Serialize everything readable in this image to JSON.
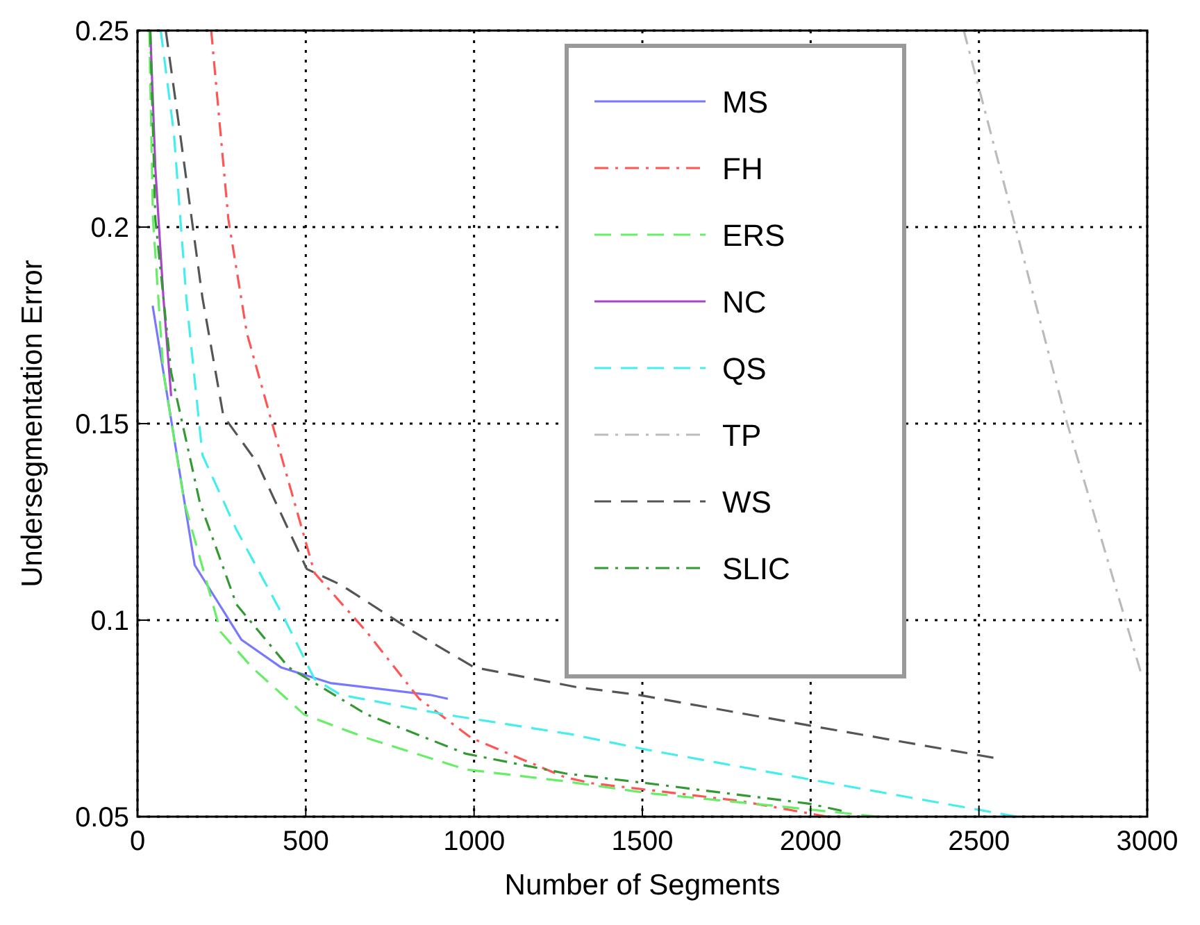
{
  "chart_data": {
    "type": "line",
    "xlabel": "Number of Segments",
    "ylabel": "Undersegmentation Error",
    "xlim": [
      0,
      3000
    ],
    "ylim": [
      0.05,
      0.25
    ],
    "xticks": [
      0,
      500,
      1000,
      1500,
      2000,
      2500,
      3000
    ],
    "yticks": [
      {
        "value": 0.05,
        "label": "0.05"
      },
      {
        "value": 0.1,
        "label": "0.1"
      },
      {
        "value": 0.15,
        "label": "0.15"
      },
      {
        "value": 0.2,
        "label": "0.2"
      },
      {
        "value": 0.25,
        "label": "0.25"
      }
    ],
    "grid": true,
    "legend": "top right",
    "marker": "none",
    "series": [
      {
        "name": "MS",
        "color": "#7777ff",
        "line_style": "solid",
        "x": [
          45,
          170,
          309,
          426,
          573,
          868,
          922
        ],
        "values": [
          0.18,
          0.114,
          0.095,
          0.088,
          0.084,
          0.081,
          0.08
        ]
      },
      {
        "name": "FH",
        "color": "#ff5555",
        "line_style": "dashdot",
        "x": [
          219,
          270,
          325,
          433,
          526,
          681,
          837,
          992,
          1271,
          1350,
          1597,
          1789,
          2050
        ],
        "values": [
          0.25,
          0.202,
          0.173,
          0.14,
          0.112,
          0.097,
          0.08,
          0.07,
          0.06,
          0.0585,
          0.056,
          0.054,
          0.05
        ]
      },
      {
        "name": "ERS",
        "color": "#66ee66",
        "line_style": "dashed",
        "x": [
          35,
          46,
          77,
          139,
          247,
          340,
          495,
          681,
          976,
          1271,
          1515,
          1900,
          2200
        ],
        "values": [
          0.25,
          0.202,
          0.163,
          0.13,
          0.097,
          0.088,
          0.076,
          0.07,
          0.062,
          0.059,
          0.056,
          0.0527,
          0.05
        ]
      },
      {
        "name": "NC",
        "color": "#aa44cc",
        "line_style": "solid",
        "x": [
          38,
          53,
          77,
          100
        ],
        "values": [
          0.25,
          0.215,
          0.182,
          0.157
        ]
      },
      {
        "name": "QS",
        "color": "#44eeee",
        "line_style": "dashed",
        "x": [
          69,
          108,
          146,
          193,
          294,
          433,
          526,
          604,
          914,
          1286,
          1515,
          1996,
          2613
        ],
        "values": [
          0.25,
          0.224,
          0.181,
          0.142,
          0.123,
          0.101,
          0.085,
          0.081,
          0.076,
          0.071,
          0.067,
          0.0595,
          0.05
        ]
      },
      {
        "name": "TP",
        "color": "#bbbbbb",
        "line_style": "dashdot",
        "x": [
          2455,
          2759,
          2980
        ],
        "values": [
          0.25,
          0.151,
          0.087
        ]
      },
      {
        "name": "WS",
        "color": "#555555",
        "line_style": "dashed",
        "x": [
          84,
          123,
          193,
          255,
          356,
          503,
          604,
          821,
          1000,
          1302,
          1487,
          2009,
          2543
        ],
        "values": [
          0.25,
          0.226,
          0.182,
          0.152,
          0.14,
          0.113,
          0.109,
          0.097,
          0.088,
          0.083,
          0.081,
          0.073,
          0.065
        ]
      },
      {
        "name": "SLIC",
        "color": "#339933",
        "line_style": "dashdot",
        "x": [
          38,
          53,
          100,
          185,
          294,
          449,
          681,
          976,
          1271,
          1515,
          1996,
          2092
        ],
        "values": [
          0.25,
          0.202,
          0.163,
          0.13,
          0.104,
          0.088,
          0.076,
          0.066,
          0.061,
          0.0585,
          0.0533,
          0.0515
        ]
      }
    ]
  }
}
